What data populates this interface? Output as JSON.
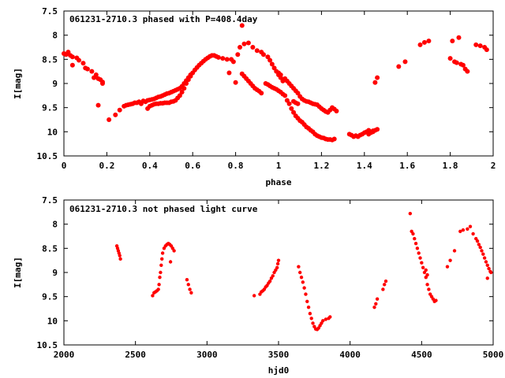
{
  "chart_data": [
    {
      "type": "scatter",
      "title": "061231-2710.3 phased with P=408.4day",
      "xlabel": "phase",
      "ylabel": "I[mag]",
      "xlim": [
        0,
        2
      ],
      "ylim": [
        10.5,
        7.5
      ],
      "y_inverted": true,
      "x_ticks": [
        "0",
        "0.2",
        "0.4",
        "0.6",
        "0.8",
        "1",
        "1.2",
        "1.4",
        "1.6",
        "1.8",
        "2"
      ],
      "y_ticks": [
        "7.5",
        "8",
        "8.5",
        "9",
        "9.5",
        "10",
        "10.5"
      ],
      "point_color": "#ff0000",
      "marker": "dot",
      "grid": false,
      "legend": "none",
      "points": [
        [
          0.0,
          8.38
        ],
        [
          0.01,
          8.4
        ],
        [
          0.02,
          8.35
        ],
        [
          0.03,
          8.42
        ],
        [
          0.04,
          8.45
        ],
        [
          0.04,
          8.62
        ],
        [
          0.06,
          8.47
        ],
        [
          0.07,
          8.52
        ],
        [
          0.09,
          8.58
        ],
        [
          0.1,
          8.68
        ],
        [
          0.11,
          8.7
        ],
        [
          0.13,
          8.75
        ],
        [
          0.14,
          8.88
        ],
        [
          0.15,
          8.82
        ],
        [
          0.16,
          8.9
        ],
        [
          0.17,
          8.92
        ],
        [
          0.18,
          8.97
        ],
        [
          0.18,
          9.0
        ],
        [
          0.16,
          9.45
        ],
        [
          0.21,
          9.75
        ],
        [
          0.24,
          9.65
        ],
        [
          0.26,
          9.55
        ],
        [
          0.28,
          9.47
        ],
        [
          0.29,
          9.45
        ],
        [
          0.3,
          9.44
        ],
        [
          0.31,
          9.43
        ],
        [
          0.32,
          9.42
        ],
        [
          0.33,
          9.4
        ],
        [
          0.34,
          9.4
        ],
        [
          0.35,
          9.38
        ],
        [
          0.36,
          9.42
        ],
        [
          0.37,
          9.36
        ],
        [
          0.38,
          9.38
        ],
        [
          0.39,
          9.35
        ],
        [
          0.4,
          9.34
        ],
        [
          0.41,
          9.33
        ],
        [
          0.42,
          9.32
        ],
        [
          0.43,
          9.3
        ],
        [
          0.44,
          9.28
        ],
        [
          0.45,
          9.27
        ],
        [
          0.46,
          9.25
        ],
        [
          0.47,
          9.23
        ],
        [
          0.48,
          9.21
        ],
        [
          0.49,
          9.2
        ],
        [
          0.5,
          9.18
        ],
        [
          0.51,
          9.16
        ],
        [
          0.52,
          9.14
        ],
        [
          0.53,
          9.12
        ],
        [
          0.54,
          9.1
        ],
        [
          0.55,
          9.06
        ],
        [
          0.56,
          9.0
        ],
        [
          0.57,
          8.94
        ],
        [
          0.58,
          8.88
        ],
        [
          0.59,
          8.82
        ],
        [
          0.39,
          9.52
        ],
        [
          0.4,
          9.47
        ],
        [
          0.41,
          9.45
        ],
        [
          0.42,
          9.43
        ],
        [
          0.43,
          9.42
        ],
        [
          0.44,
          9.42
        ],
        [
          0.45,
          9.41
        ],
        [
          0.46,
          9.41
        ],
        [
          0.47,
          9.4
        ],
        [
          0.48,
          9.4
        ],
        [
          0.49,
          9.4
        ],
        [
          0.5,
          9.38
        ],
        [
          0.51,
          9.37
        ],
        [
          0.52,
          9.35
        ],
        [
          0.53,
          9.3
        ],
        [
          0.54,
          9.25
        ],
        [
          0.55,
          9.18
        ],
        [
          0.56,
          9.1
        ],
        [
          0.57,
          9.0
        ],
        [
          0.58,
          8.92
        ],
        [
          0.59,
          8.85
        ],
        [
          0.6,
          8.78
        ],
        [
          0.61,
          8.72
        ],
        [
          0.62,
          8.67
        ],
        [
          0.63,
          8.62
        ],
        [
          0.64,
          8.58
        ],
        [
          0.65,
          8.54
        ],
        [
          0.66,
          8.5
        ],
        [
          0.67,
          8.47
        ],
        [
          0.68,
          8.44
        ],
        [
          0.69,
          8.42
        ],
        [
          0.7,
          8.42
        ],
        [
          0.71,
          8.44
        ],
        [
          0.72,
          8.46
        ],
        [
          0.74,
          8.48
        ],
        [
          0.76,
          8.5
        ],
        [
          0.78,
          8.5
        ],
        [
          0.77,
          8.78
        ],
        [
          0.79,
          8.55
        ],
        [
          0.81,
          8.4
        ],
        [
          0.82,
          8.25
        ],
        [
          0.83,
          7.8
        ],
        [
          0.84,
          8.18
        ],
        [
          0.86,
          8.16
        ],
        [
          0.8,
          8.98
        ],
        [
          0.83,
          8.8
        ],
        [
          0.84,
          8.85
        ],
        [
          0.85,
          8.9
        ],
        [
          0.86,
          8.95
        ],
        [
          0.87,
          9.0
        ],
        [
          0.88,
          9.05
        ],
        [
          0.89,
          9.1
        ],
        [
          0.9,
          9.13
        ],
        [
          0.91,
          9.16
        ],
        [
          0.92,
          9.2
        ],
        [
          0.88,
          8.25
        ],
        [
          0.9,
          8.32
        ],
        [
          0.92,
          8.35
        ],
        [
          0.93,
          8.4
        ],
        [
          0.95,
          8.45
        ],
        [
          0.96,
          8.52
        ],
        [
          0.97,
          8.6
        ],
        [
          0.98,
          8.68
        ],
        [
          0.99,
          8.75
        ],
        [
          1.0,
          8.82
        ],
        [
          1.01,
          8.88
        ],
        [
          1.02,
          8.95
        ],
        [
          0.94,
          9.0
        ],
        [
          0.95,
          9.02
        ],
        [
          0.96,
          9.05
        ],
        [
          0.97,
          9.08
        ],
        [
          0.98,
          9.1
        ],
        [
          0.99,
          9.12
        ],
        [
          1.0,
          9.15
        ],
        [
          1.01,
          9.18
        ],
        [
          1.02,
          9.22
        ],
        [
          1.03,
          9.25
        ],
        [
          1.04,
          9.35
        ],
        [
          1.05,
          9.42
        ],
        [
          1.06,
          9.52
        ],
        [
          1.07,
          9.6
        ],
        [
          1.08,
          9.67
        ],
        [
          1.09,
          9.72
        ],
        [
          1.1,
          9.77
        ],
        [
          1.11,
          9.8
        ],
        [
          1.12,
          9.85
        ],
        [
          1.13,
          9.9
        ],
        [
          1.14,
          9.93
        ],
        [
          1.15,
          9.97
        ],
        [
          1.16,
          10.0
        ],
        [
          1.17,
          10.05
        ],
        [
          1.18,
          10.08
        ],
        [
          1.19,
          10.1
        ],
        [
          1.2,
          10.12
        ],
        [
          1.21,
          10.13
        ],
        [
          1.22,
          10.15
        ],
        [
          1.23,
          10.16
        ],
        [
          1.24,
          10.16
        ],
        [
          1.25,
          10.17
        ],
        [
          1.26,
          10.15
        ],
        [
          1.0,
          8.78
        ],
        [
          1.01,
          8.82
        ],
        [
          1.03,
          8.9
        ],
        [
          1.04,
          8.95
        ],
        [
          1.05,
          9.0
        ],
        [
          1.06,
          9.05
        ],
        [
          1.07,
          9.1
        ],
        [
          1.08,
          9.15
        ],
        [
          1.09,
          9.2
        ],
        [
          1.1,
          9.27
        ],
        [
          1.11,
          9.32
        ],
        [
          1.12,
          9.35
        ],
        [
          1.13,
          9.37
        ],
        [
          1.14,
          9.38
        ],
        [
          1.15,
          9.4
        ],
        [
          1.16,
          9.42
        ],
        [
          1.17,
          9.43
        ],
        [
          1.18,
          9.44
        ],
        [
          1.19,
          9.48
        ],
        [
          1.2,
          9.52
        ],
        [
          1.21,
          9.55
        ],
        [
          1.22,
          9.58
        ],
        [
          1.23,
          9.6
        ],
        [
          1.24,
          9.55
        ],
        [
          1.25,
          9.5
        ],
        [
          1.26,
          9.53
        ],
        [
          1.27,
          9.57
        ],
        [
          1.07,
          9.37
        ],
        [
          1.08,
          9.4
        ],
        [
          1.09,
          9.42
        ],
        [
          1.33,
          10.05
        ],
        [
          1.34,
          10.07
        ],
        [
          1.35,
          10.1
        ],
        [
          1.36,
          10.08
        ],
        [
          1.37,
          10.1
        ],
        [
          1.38,
          10.07
        ],
        [
          1.39,
          10.05
        ],
        [
          1.4,
          10.02
        ],
        [
          1.41,
          10.0
        ],
        [
          1.42,
          10.05
        ],
        [
          1.43,
          10.02
        ],
        [
          1.44,
          10.0
        ],
        [
          1.45,
          9.97
        ],
        [
          1.46,
          9.95
        ],
        [
          1.42,
          9.97
        ],
        [
          1.44,
          9.98
        ],
        [
          1.45,
          8.98
        ],
        [
          1.46,
          8.88
        ],
        [
          1.56,
          8.65
        ],
        [
          1.59,
          8.55
        ],
        [
          1.66,
          8.2
        ],
        [
          1.68,
          8.15
        ],
        [
          1.7,
          8.12
        ],
        [
          1.8,
          8.48
        ],
        [
          1.81,
          8.12
        ],
        [
          1.82,
          8.55
        ],
        [
          1.83,
          8.57
        ],
        [
          1.84,
          8.05
        ],
        [
          1.85,
          8.6
        ],
        [
          1.86,
          8.62
        ],
        [
          1.87,
          8.7
        ],
        [
          1.88,
          8.75
        ],
        [
          1.92,
          8.2
        ],
        [
          1.94,
          8.22
        ],
        [
          1.96,
          8.25
        ],
        [
          1.97,
          8.3
        ]
      ]
    },
    {
      "type": "scatter",
      "title": "061231-2710.3 not phased light curve",
      "xlabel": "hjd0",
      "ylabel": "I[mag]",
      "xlim": [
        2000,
        5000
      ],
      "ylim": [
        10.5,
        7.5
      ],
      "y_inverted": true,
      "x_ticks": [
        "2000",
        "2500",
        "3000",
        "3500",
        "4000",
        "4500",
        "5000"
      ],
      "y_ticks": [
        "7.5",
        "8",
        "8.5",
        "9",
        "9.5",
        "10",
        "10.5"
      ],
      "point_color": "#ff0000",
      "marker": "dot",
      "grid": false,
      "legend": "none",
      "points": [
        [
          2370,
          8.45
        ],
        [
          2375,
          8.5
        ],
        [
          2380,
          8.55
        ],
        [
          2385,
          8.6
        ],
        [
          2390,
          8.65
        ],
        [
          2395,
          8.72
        ],
        [
          2620,
          9.48
        ],
        [
          2630,
          9.42
        ],
        [
          2640,
          9.4
        ],
        [
          2650,
          9.38
        ],
        [
          2660,
          9.35
        ],
        [
          2665,
          9.25
        ],
        [
          2670,
          9.1
        ],
        [
          2675,
          9.0
        ],
        [
          2680,
          8.85
        ],
        [
          2685,
          8.72
        ],
        [
          2690,
          8.6
        ],
        [
          2700,
          8.5
        ],
        [
          2710,
          8.45
        ],
        [
          2720,
          8.42
        ],
        [
          2730,
          8.4
        ],
        [
          2740,
          8.42
        ],
        [
          2750,
          8.45
        ],
        [
          2760,
          8.5
        ],
        [
          2770,
          8.55
        ],
        [
          2745,
          8.78
        ],
        [
          2860,
          9.15
        ],
        [
          2870,
          9.25
        ],
        [
          2880,
          9.35
        ],
        [
          2890,
          9.42
        ],
        [
          3330,
          9.48
        ],
        [
          3370,
          9.45
        ],
        [
          3380,
          9.4
        ],
        [
          3390,
          9.38
        ],
        [
          3400,
          9.35
        ],
        [
          3410,
          9.3
        ],
        [
          3420,
          9.27
        ],
        [
          3430,
          9.22
        ],
        [
          3440,
          9.18
        ],
        [
          3450,
          9.12
        ],
        [
          3460,
          9.07
        ],
        [
          3470,
          9.0
        ],
        [
          3480,
          8.95
        ],
        [
          3490,
          8.9
        ],
        [
          3495,
          8.82
        ],
        [
          3500,
          8.75
        ],
        [
          3640,
          8.88
        ],
        [
          3650,
          9.0
        ],
        [
          3660,
          9.1
        ],
        [
          3670,
          9.2
        ],
        [
          3680,
          9.32
        ],
        [
          3690,
          9.45
        ],
        [
          3700,
          9.6
        ],
        [
          3710,
          9.72
        ],
        [
          3720,
          9.85
        ],
        [
          3730,
          9.95
        ],
        [
          3740,
          10.05
        ],
        [
          3750,
          10.12
        ],
        [
          3760,
          10.17
        ],
        [
          3770,
          10.18
        ],
        [
          3780,
          10.15
        ],
        [
          3790,
          10.1
        ],
        [
          3800,
          10.05
        ],
        [
          3810,
          10.0
        ],
        [
          3830,
          9.97
        ],
        [
          3850,
          9.95
        ],
        [
          3860,
          9.92
        ],
        [
          4170,
          9.72
        ],
        [
          4180,
          9.65
        ],
        [
          4190,
          9.55
        ],
        [
          4230,
          9.35
        ],
        [
          4240,
          9.25
        ],
        [
          4250,
          9.18
        ],
        [
          4420,
          7.78
        ],
        [
          4430,
          8.15
        ],
        [
          4440,
          8.2
        ],
        [
          4450,
          8.3
        ],
        [
          4460,
          8.4
        ],
        [
          4470,
          8.5
        ],
        [
          4480,
          8.6
        ],
        [
          4490,
          8.7
        ],
        [
          4500,
          8.8
        ],
        [
          4510,
          8.9
        ],
        [
          4520,
          9.0
        ],
        [
          4530,
          9.1
        ],
        [
          4540,
          9.25
        ],
        [
          4550,
          9.35
        ],
        [
          4560,
          9.45
        ],
        [
          4570,
          9.5
        ],
        [
          4580,
          9.55
        ],
        [
          4590,
          9.6
        ],
        [
          4600,
          9.58
        ],
        [
          4530,
          8.95
        ],
        [
          4540,
          9.05
        ],
        [
          4680,
          8.88
        ],
        [
          4700,
          8.75
        ],
        [
          4730,
          8.55
        ],
        [
          4770,
          8.15
        ],
        [
          4790,
          8.12
        ],
        [
          4820,
          8.1
        ],
        [
          4840,
          8.05
        ],
        [
          4860,
          8.2
        ],
        [
          4880,
          8.3
        ],
        [
          4890,
          8.35
        ],
        [
          4900,
          8.42
        ],
        [
          4910,
          8.48
        ],
        [
          4920,
          8.55
        ],
        [
          4930,
          8.62
        ],
        [
          4940,
          8.7
        ],
        [
          4950,
          8.78
        ],
        [
          4960,
          8.85
        ],
        [
          4970,
          8.92
        ],
        [
          4980,
          8.98
        ],
        [
          4985,
          9.0
        ],
        [
          4960,
          9.12
        ]
      ]
    }
  ]
}
